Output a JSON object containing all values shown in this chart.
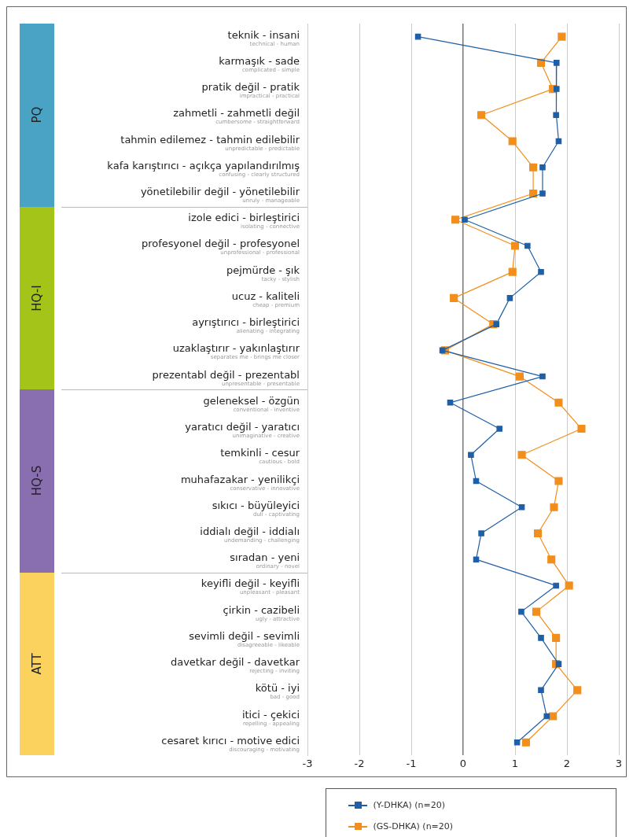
{
  "chart_data": {
    "type": "line",
    "orientation": "horizontal",
    "categories": [
      "teknik - insani\ntechnical - human",
      "karmaşık - sade\ncomplicated - simple",
      "pratik değil - pratik\nimpractical - practical",
      "zahmetli - zahmetli değil\ncumbersome - straightforward",
      "tahmin edilemez - tahmin edilebilir\nunpredictable - predictable",
      "kafa karıştırıcı - açıkça yapılandırılmış\nconfusing - clearly structured",
      "yönetilebilir değil - yönetilebilir\nunruly - manageable",
      "izole edici - birleştirici\nisolating - connective",
      "profesyonel değil - profesyonel\nunprofessional - professional",
      "pejmürde - şık\ntacky - stylish",
      "ucuz - kaliteli\ncheap - premium",
      "ayrıştırıcı - birleştirici\nalienating - integrating",
      "uzaklaştırır - yakınlaştırır\nseparates me - brings me closer",
      "prezentabl değil - prezentabl\nunpresentable - presentable",
      "geleneksel - özgün\nconventional - inventive",
      "yaratıcı değil - yaratıcı\nunimaginative - creative",
      "temkinli - cesur\ncautious - bold",
      "muhafazakar - yenilikçi\nconservative - innovative",
      "sıkıcı - büyüleyici\ndull - captivating",
      "iddialı değil - iddialı\nundemanding - challenging",
      "sıradan - yeni\nordinary - novel",
      "keyifli değil - keyifli\nunpleasant - pleasant",
      "çirkin - cazibeli\nugly - attractive",
      "sevimli değil - sevimli\ndisagreeable - likeable",
      "davetkar değil - davetkar\nrejecting - inviting",
      "kötü - iyi\nbad - good",
      "itici - çekici\nrepelling - appealing",
      "cesaret kırıcı - motive edici\ndiscouraging - motivating"
    ],
    "series": [
      {
        "name": "(Y-DHKA) (n=20)",
        "color": "#1f5fa6",
        "values": [
          -0.87,
          1.8,
          1.8,
          1.79,
          1.84,
          1.53,
          1.53,
          0.03,
          1.24,
          1.5,
          0.9,
          0.64,
          -0.4,
          1.53,
          -0.25,
          0.7,
          0.15,
          0.25,
          1.13,
          0.35,
          0.25,
          1.79,
          1.12,
          1.5,
          1.84,
          1.5,
          1.61,
          1.04
        ]
      },
      {
        "name": "(GS-DHKA) (n=20)",
        "color": "#f28e1c",
        "values": [
          1.9,
          1.5,
          1.73,
          0.35,
          0.95,
          1.35,
          1.35,
          -0.15,
          1.0,
          0.95,
          -0.18,
          0.58,
          -0.35,
          1.09,
          1.84,
          2.28,
          1.13,
          1.84,
          1.75,
          1.44,
          1.7,
          2.04,
          1.41,
          1.79,
          1.79,
          2.2,
          1.73,
          1.21
        ]
      }
    ],
    "xlim": [
      -3,
      3
    ],
    "xticks": [
      -3,
      -2,
      -1,
      0,
      1,
      2,
      3
    ],
    "annotations": [
      "PQ",
      "HQ-I",
      "HQ-S",
      "ATT"
    ],
    "grid": "x",
    "legend": "bottom",
    "marker": "square",
    "line_style": "solid"
  }
}
